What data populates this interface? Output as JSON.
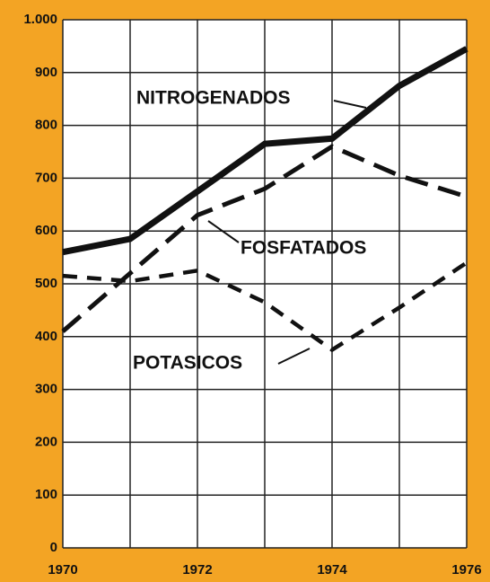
{
  "chart_data": {
    "type": "line",
    "x": [
      1970,
      1971,
      1972,
      1973,
      1974,
      1975,
      1976
    ],
    "xlim": [
      1970,
      1976
    ],
    "xticks": [
      1970,
      1972,
      1974,
      1976
    ],
    "minor_xticks": [
      1971,
      1973,
      1975
    ],
    "ylim": [
      0,
      1000
    ],
    "yticks": [
      0,
      100,
      200,
      300,
      400,
      500,
      600,
      700,
      800,
      900,
      {
        "value": 1000,
        "label": "1.000"
      }
    ],
    "grid": true,
    "series": [
      {
        "name": "NITROGENADOS",
        "color": "#111111",
        "style": "solid",
        "values": [
          560,
          585,
          675,
          765,
          775,
          875,
          945
        ]
      },
      {
        "name": "FOSFATADOS",
        "color": "#111111",
        "style": "long-dash",
        "values": [
          410,
          520,
          630,
          680,
          760,
          705,
          665
        ]
      },
      {
        "name": "POTASICOS",
        "color": "#111111",
        "style": "short-dash",
        "values": [
          515,
          505,
          525,
          465,
          375,
          455,
          540
        ]
      }
    ]
  }
}
